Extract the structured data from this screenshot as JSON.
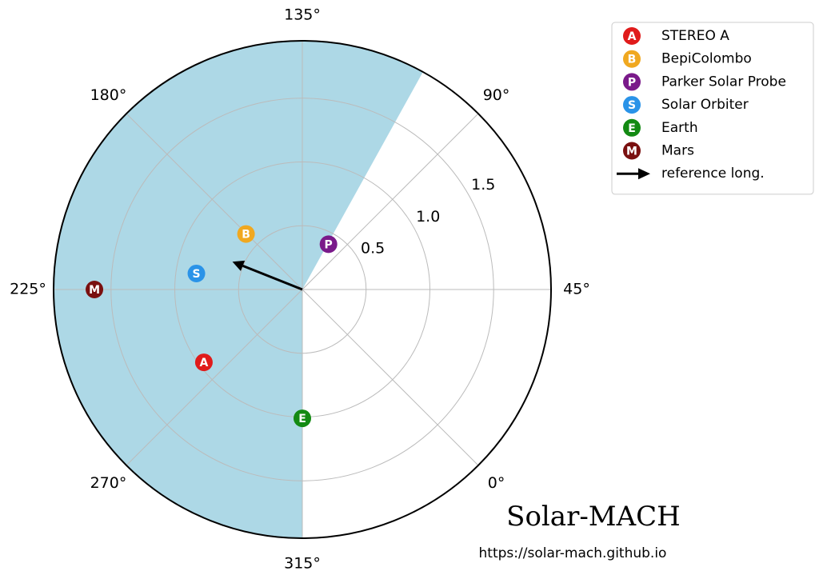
{
  "chart_data": {
    "type": "polar-scatter",
    "thetaticks": [
      {
        "value": 0,
        "label": "0°"
      },
      {
        "value": 45,
        "label": "45°"
      },
      {
        "value": 90,
        "label": "90°"
      },
      {
        "value": 135,
        "label": "135°"
      },
      {
        "value": 180,
        "label": "180°"
      },
      {
        "value": 225,
        "label": "225°"
      },
      {
        "value": 270,
        "label": "270°"
      },
      {
        "value": 315,
        "label": "315°"
      }
    ],
    "rlim": [
      0,
      1.95
    ],
    "rticks": [
      0.5,
      {
        "value": 1,
        "label": "1.0"
      },
      1.5
    ],
    "grid": true,
    "shade": [
      106,
      315
    ],
    "shade_color": "#add8e6",
    "series": [
      {
        "name": "STEREO A",
        "marker": "A",
        "color": "#e01b1b",
        "theta": [
          261.5
        ],
        "r": [
          0.96
        ]
      },
      {
        "name": "BepiColombo",
        "marker": "B",
        "color": "#f0a820",
        "theta": [
          180.4
        ],
        "r": [
          0.62
        ]
      },
      {
        "name": "Parker Solar Probe",
        "marker": "P",
        "color": "#7a1a8a",
        "theta": [
          105
        ],
        "r": [
          0.41
        ]
      },
      {
        "name": "Solar Orbiter",
        "marker": "S",
        "color": "#2a93e8",
        "theta": [
          216.4
        ],
        "r": [
          0.84
        ]
      },
      {
        "name": "Earth",
        "marker": "E",
        "color": "#138a13",
        "theta": [
          315
        ],
        "r": [
          1.01
        ]
      },
      {
        "name": "Mars",
        "marker": "M",
        "color": "#7a1010",
        "theta": [
          225
        ],
        "r": [
          1.63
        ]
      }
    ],
    "arrow": {
      "name": "reference long.",
      "theta": 203.3,
      "r": 0.59,
      "color": "#000000"
    },
    "legend": "upper right",
    "title": "Solar-MACH",
    "url": "https://solar-mach.github.io"
  }
}
